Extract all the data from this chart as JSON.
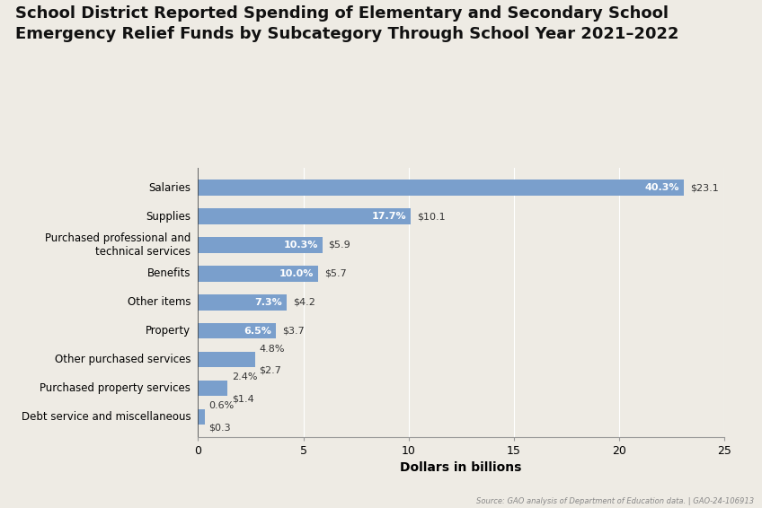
{
  "title": "School District Reported Spending of Elementary and Secondary School\nEmergency Relief Funds by Subcategory Through School Year 2021–2022",
  "categories": [
    "Debt service and miscellaneous",
    "Purchased property services",
    "Other purchased services",
    "Property",
    "Other items",
    "Benefits",
    "Purchased professional and\ntechnical services",
    "Supplies",
    "Salaries"
  ],
  "values": [
    0.3,
    1.4,
    2.7,
    3.7,
    4.2,
    5.7,
    5.9,
    10.1,
    23.1
  ],
  "percentages": [
    "0.6%",
    "2.4%",
    "4.8%",
    "6.5%",
    "7.3%",
    "10.0%",
    "10.3%",
    "17.7%",
    "40.3%"
  ],
  "dollar_labels": [
    "$0.3",
    "$1.4",
    "$2.7",
    "$3.7",
    "$4.2",
    "$5.7",
    "$5.9",
    "$10.1",
    "$23.1"
  ],
  "bar_color": "#7a9fcc",
  "background_color": "#eeebe4",
  "title_fontsize": 13.0,
  "xlabel": "Dollars in billions",
  "xlabel_fontsize": 10,
  "tick_fontsize": 9,
  "label_fontsize": 8.5,
  "annotation_fontsize": 8.0,
  "xlim": [
    0,
    25
  ],
  "xticks": [
    0,
    5,
    10,
    15,
    20,
    25
  ],
  "source_text": "Source: GAO analysis of Department of Education data. | GAO-24-106913",
  "inside_threshold": 3.0
}
